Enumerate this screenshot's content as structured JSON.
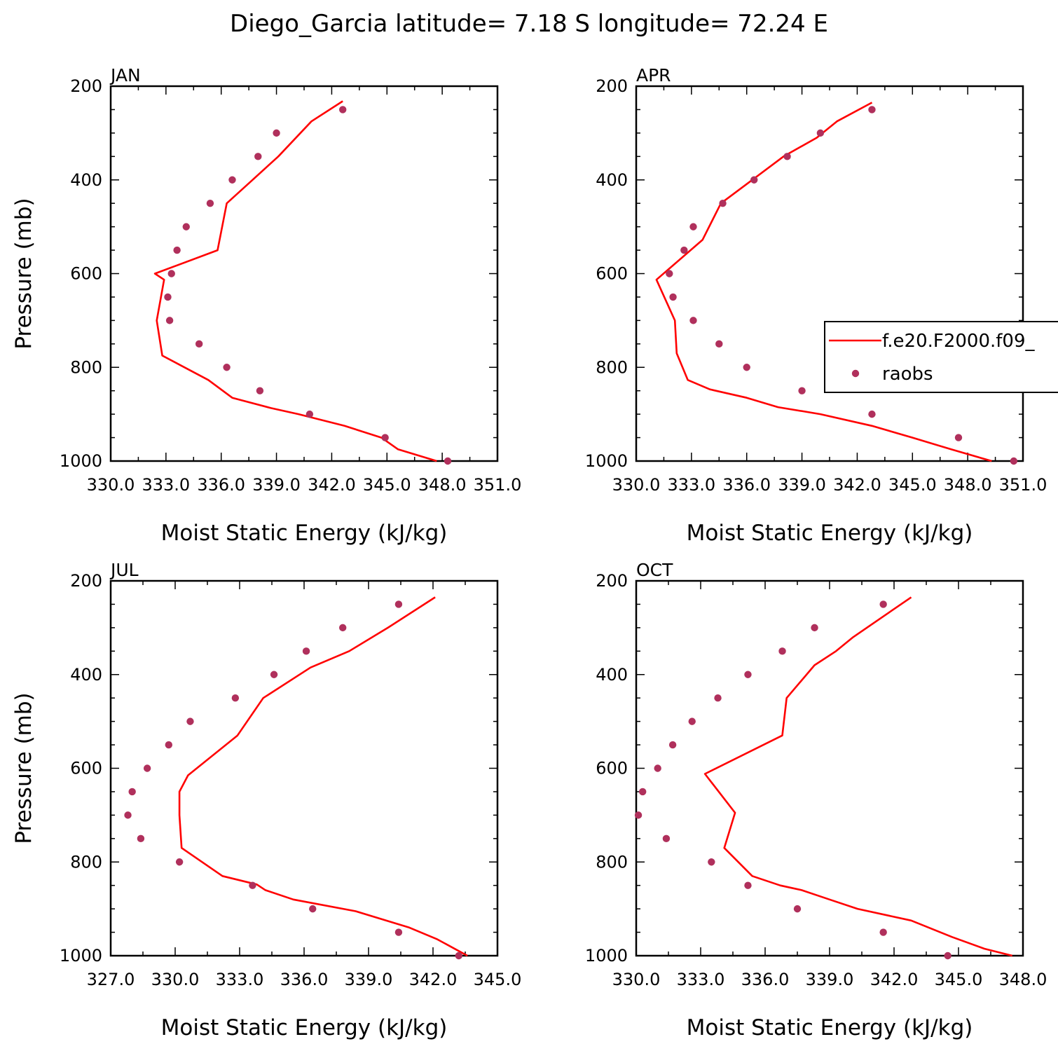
{
  "figure": {
    "title": "Diego_Garcia  latitude= 7.18 S longitude= 72.24 E"
  },
  "colors": {
    "model_line": "#ff0000",
    "obs_marker": "#b0305c",
    "axes": "#000000"
  },
  "legend": {
    "model_label": "f.e20.F2000.f09_",
    "obs_label": "raobs",
    "placement": "right, attached to APR panel"
  },
  "chart_data": [
    {
      "type": "line",
      "panel": "JAN",
      "title": "JAN",
      "xlabel": "Moist Static Energy (kJ/kg)",
      "ylabel": "Pressure (mb)",
      "xlim": [
        330,
        351
      ],
      "ylim": [
        1000,
        200
      ],
      "xticks": [
        330,
        333,
        336,
        339,
        342,
        345,
        348,
        351
      ],
      "xtick_labels": [
        "330.0",
        "333.0",
        "336.0",
        "339.0",
        "342.0",
        "345.0",
        "348.0",
        "351.0"
      ],
      "yticks": [
        200,
        400,
        600,
        800,
        1000
      ],
      "ytick_labels": [
        "200",
        "400",
        "600",
        "800",
        "1000"
      ],
      "series": [
        {
          "name": "f.e20.F2000.f09_",
          "kind": "line",
          "x": [
            347.7,
            345.6,
            344.7,
            342.7,
            340.2,
            338.7,
            336.6,
            335.3,
            332.8,
            332.5,
            332.9,
            332.4,
            335.8,
            336.3,
            337.7,
            339.1,
            340.9,
            342.6
          ],
          "y": [
            1000,
            975,
            950,
            925,
            900,
            887,
            865,
            827,
            775,
            700,
            613,
            600,
            550,
            450,
            400,
            350,
            275,
            232
          ]
        },
        {
          "name": "raobs",
          "kind": "scatter",
          "x": [
            348.3,
            344.9,
            340.8,
            338.1,
            336.3,
            334.8,
            333.2,
            333.1,
            333.3,
            333.6,
            334.1,
            335.4,
            336.6,
            338.0,
            339.0,
            342.6
          ],
          "y": [
            1000,
            950,
            900,
            850,
            800,
            750,
            700,
            650,
            600,
            550,
            500,
            450,
            400,
            350,
            300,
            250
          ]
        }
      ]
    },
    {
      "type": "line",
      "panel": "APR",
      "title": "APR",
      "xlabel": "Moist Static Energy (kJ/kg)",
      "ylabel": "",
      "xlim": [
        330,
        351
      ],
      "ylim": [
        1000,
        200
      ],
      "xticks": [
        330,
        333,
        336,
        339,
        342,
        345,
        348,
        351
      ],
      "xtick_labels": [
        "330.0",
        "333.0",
        "336.0",
        "339.0",
        "342.0",
        "345.0",
        "348.0",
        "351.0"
      ],
      "yticks": [
        200,
        400,
        600,
        800,
        1000
      ],
      "ytick_labels": [
        "200",
        "400",
        "600",
        "800",
        "1000"
      ],
      "series": [
        {
          "name": "f.e20.F2000.f09_",
          "kind": "line",
          "x": [
            349.3,
            347.1,
            345.0,
            342.8,
            340.0,
            337.7,
            336.0,
            334.0,
            332.8,
            332.2,
            332.1,
            331.1,
            333.6,
            334.6,
            336.3,
            338.0,
            339.8,
            340.9,
            342.8
          ],
          "y": [
            1000,
            975,
            950,
            925,
            900,
            885,
            865,
            847,
            827,
            770,
            700,
            613,
            528,
            450,
            400,
            350,
            310,
            275,
            235
          ]
        },
        {
          "name": "raobs",
          "kind": "scatter",
          "x": [
            350.5,
            347.5,
            342.8,
            339.0,
            336.0,
            334.5,
            333.1,
            332.0,
            331.8,
            332.6,
            333.1,
            334.7,
            336.4,
            338.2,
            340.0,
            342.8
          ],
          "y": [
            1000,
            950,
            900,
            850,
            800,
            750,
            700,
            650,
            600,
            550,
            500,
            450,
            400,
            350,
            300,
            250
          ]
        }
      ]
    },
    {
      "type": "line",
      "panel": "JUL",
      "title": "JUL",
      "xlabel": "Moist Static Energy (kJ/kg)",
      "ylabel": "Pressure (mb)",
      "xlim": [
        327,
        345
      ],
      "ylim": [
        1000,
        200
      ],
      "xticks": [
        327,
        330,
        333,
        336,
        339,
        342,
        345
      ],
      "xtick_labels": [
        "327.0",
        "330.0",
        "333.0",
        "336.0",
        "339.0",
        "342.0",
        "345.0"
      ],
      "yticks": [
        200,
        400,
        600,
        800,
        1000
      ],
      "ytick_labels": [
        "200",
        "400",
        "600",
        "800",
        "1000"
      ],
      "series": [
        {
          "name": "f.e20.F2000.f09_",
          "kind": "line",
          "x": [
            343.6,
            343.2,
            342.2,
            340.9,
            338.4,
            335.5,
            334.2,
            333.8,
            332.2,
            330.3,
            330.2,
            330.2,
            330.6,
            332.9,
            334.1,
            336.3,
            338.1,
            339.9,
            342.1
          ],
          "y": [
            1000,
            990,
            965,
            940,
            905,
            880,
            860,
            848,
            830,
            770,
            700,
            650,
            615,
            530,
            450,
            385,
            350,
            300,
            235
          ]
        },
        {
          "name": "raobs",
          "kind": "scatter",
          "x": [
            343.2,
            340.4,
            336.4,
            333.6,
            330.2,
            328.4,
            327.8,
            328.0,
            328.7,
            329.7,
            330.7,
            332.8,
            334.6,
            336.1,
            337.8,
            340.4
          ],
          "y": [
            1000,
            950,
            900,
            850,
            800,
            750,
            700,
            650,
            600,
            550,
            500,
            450,
            400,
            350,
            300,
            250
          ]
        }
      ]
    },
    {
      "type": "line",
      "panel": "OCT",
      "title": "OCT",
      "xlabel": "Moist Static Energy (kJ/kg)",
      "ylabel": "",
      "xlim": [
        330,
        348
      ],
      "ylim": [
        1000,
        200
      ],
      "xticks": [
        330,
        333,
        336,
        339,
        342,
        345,
        348
      ],
      "xtick_labels": [
        "330.0",
        "333.0",
        "336.0",
        "339.0",
        "342.0",
        "345.0",
        "348.0"
      ],
      "yticks": [
        200,
        400,
        600,
        800,
        1000
      ],
      "ytick_labels": [
        "200",
        "400",
        "600",
        "800",
        "1000"
      ],
      "series": [
        {
          "name": "f.e20.F2000.f09_",
          "kind": "line",
          "x": [
            347.5,
            346.2,
            344.7,
            342.8,
            340.3,
            339.0,
            337.7,
            336.7,
            335.4,
            334.1,
            334.6,
            333.2,
            336.8,
            337.0,
            338.3,
            339.3,
            340.1,
            342.8
          ],
          "y": [
            1000,
            985,
            960,
            925,
            900,
            880,
            860,
            850,
            830,
            770,
            695,
            612,
            530,
            450,
            380,
            350,
            320,
            235
          ]
        },
        {
          "name": "raobs",
          "kind": "scatter",
          "x": [
            344.5,
            341.5,
            337.5,
            335.2,
            333.5,
            331.4,
            330.1,
            330.3,
            331.0,
            331.7,
            332.6,
            333.8,
            335.2,
            336.8,
            338.3,
            341.5
          ],
          "y": [
            1000,
            950,
            900,
            850,
            800,
            750,
            700,
            650,
            600,
            550,
            500,
            450,
            400,
            350,
            300,
            250
          ]
        }
      ]
    }
  ]
}
